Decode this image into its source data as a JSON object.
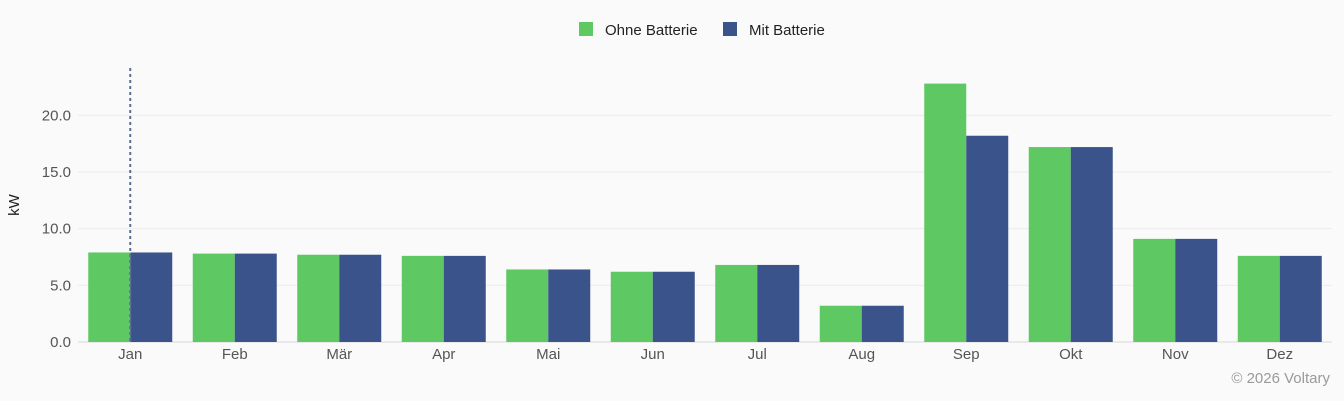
{
  "chart_data": {
    "type": "bar",
    "categories": [
      "Jan",
      "Feb",
      "Mär",
      "Apr",
      "Mai",
      "Jun",
      "Jul",
      "Aug",
      "Sep",
      "Okt",
      "Nov",
      "Dez"
    ],
    "series": [
      {
        "name": "Ohne Batterie",
        "color": "#5ec862",
        "values": [
          7.9,
          7.8,
          7.7,
          7.6,
          6.4,
          6.2,
          6.8,
          3.2,
          22.8,
          17.2,
          9.1,
          7.6
        ]
      },
      {
        "name": "Mit Batterie",
        "color": "#3b538b",
        "values": [
          7.9,
          7.8,
          7.7,
          7.6,
          6.4,
          6.2,
          6.8,
          3.2,
          18.2,
          17.2,
          9.1,
          7.6
        ]
      }
    ],
    "ylabel": "kW",
    "ylim": [
      0,
      24
    ],
    "yticks": [
      "0.0",
      "5.0",
      "10.0",
      "15.0",
      "20.0"
    ],
    "ytick_values": [
      0,
      5,
      10,
      15,
      20
    ],
    "grid": true,
    "legend_position": "top-center",
    "highlight_category": "Jan"
  },
  "footer": {
    "copyright": "© 2026 Voltary"
  }
}
